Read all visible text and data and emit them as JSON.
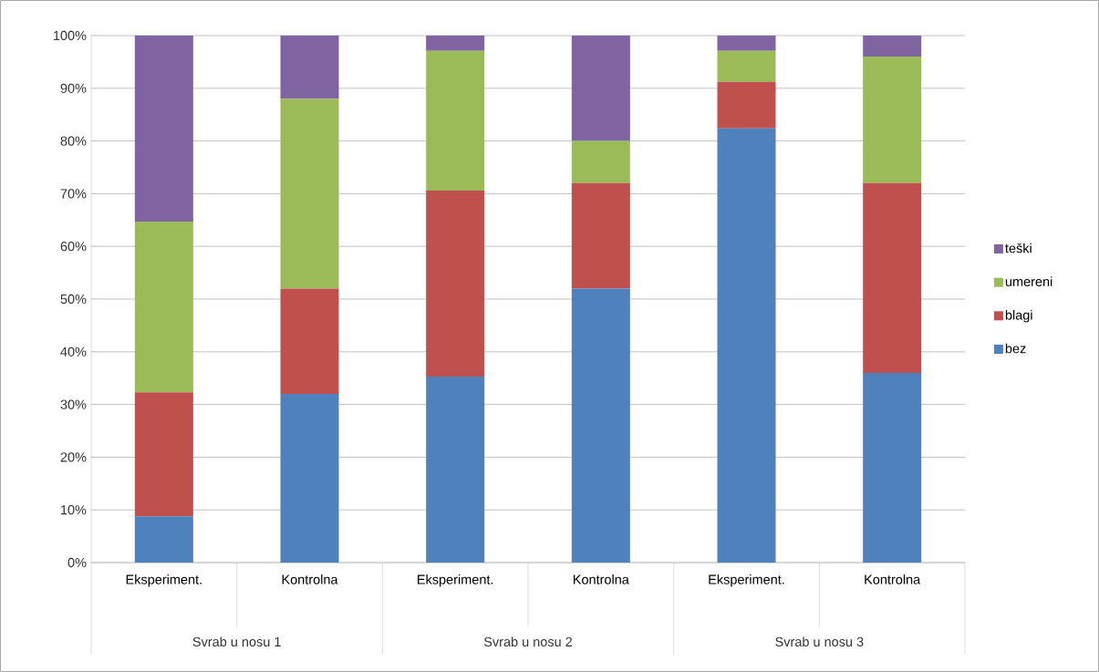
{
  "chart_data": {
    "type": "bar",
    "stacked": true,
    "categories": [
      "Eksperiment.",
      "Kontrolna",
      "Eksperiment.",
      "Kontrolna",
      "Eksperiment.",
      "Kontrolna"
    ],
    "annotations": [
      "Svrab u nosu 1",
      "Svrab u nosu 2",
      "Svrab u nosu 3"
    ],
    "series": [
      {
        "name": "bez",
        "color": "#4f81bd",
        "values": [
          8.8,
          32,
          35.3,
          52,
          82.4,
          36
        ]
      },
      {
        "name": "blagi",
        "color": "#c0504d",
        "values": [
          23.5,
          20,
          35.3,
          20,
          8.8,
          36
        ]
      },
      {
        "name": "umereni",
        "color": "#9bbb59",
        "values": [
          32.4,
          36,
          26.5,
          8,
          5.9,
          24
        ]
      },
      {
        "name": "teški",
        "color": "#8064a2",
        "values": [
          35.3,
          12,
          2.9,
          20,
          2.9,
          4
        ]
      }
    ],
    "ylim": [
      0,
      100
    ],
    "yticks": [
      {
        "value": 0,
        "label": "0%"
      },
      {
        "value": 10,
        "label": "10%"
      },
      {
        "value": 20,
        "label": "20%"
      },
      {
        "value": 30,
        "label": "30%"
      },
      {
        "value": 40,
        "label": "40%"
      },
      {
        "value": 50,
        "label": "50%"
      },
      {
        "value": 60,
        "label": "60%"
      },
      {
        "value": 70,
        "label": "70%"
      },
      {
        "value": 80,
        "label": "80%"
      },
      {
        "value": 90,
        "label": "90%"
      },
      {
        "value": 100,
        "label": "100%"
      }
    ],
    "grid": "y",
    "legend": "right"
  }
}
